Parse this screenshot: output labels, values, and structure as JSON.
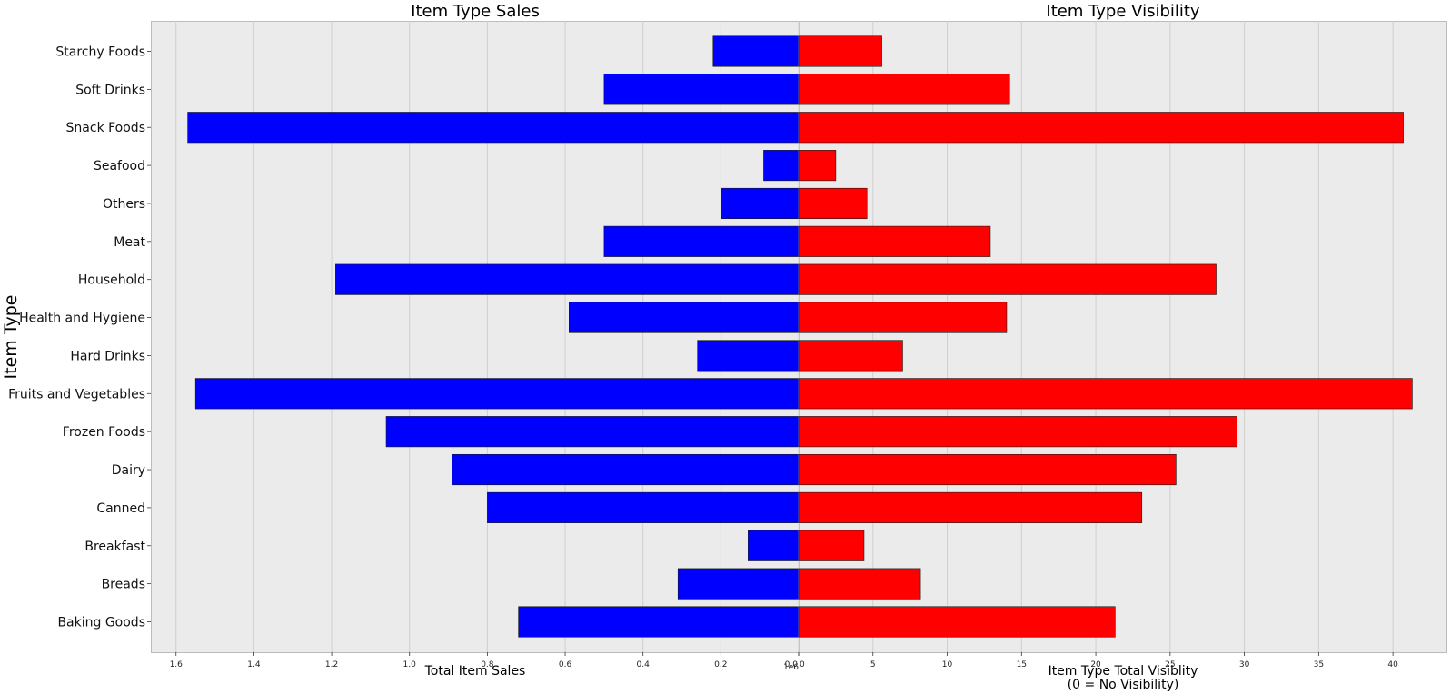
{
  "chart_data": {
    "type": "bar",
    "orientation": "horizontal",
    "layout": "back-to-back",
    "ylabel": "Item Type",
    "categories": [
      "Baking Goods",
      "Breads",
      "Breakfast",
      "Canned",
      "Dairy",
      "Frozen Foods",
      "Fruits and Vegetables",
      "Hard Drinks",
      "Health and Hygiene",
      "Household",
      "Meat",
      "Others",
      "Seafood",
      "Snack Foods",
      "Soft Drinks",
      "Starchy Foods"
    ],
    "panels": [
      {
        "title": "Item Type Sales",
        "xlabel": "Total Item Sales",
        "offset_label": "1e6",
        "color": "#0000ff",
        "inverted_x": true,
        "xlim": [
          0,
          1.6648
        ],
        "ticks": [
          0,
          0.2,
          0.4,
          0.6,
          0.8,
          1.0,
          1.2,
          1.4,
          1.6
        ],
        "tick_labels": [
          "0.0",
          "0.2",
          "0.4",
          "0.6",
          "0.8",
          "1.0",
          "1.2",
          "1.4",
          "1.6"
        ],
        "series": [
          {
            "name": "Total Item Sales",
            "values": [
              0.72,
              0.31,
              0.13,
              0.8,
              0.89,
              1.06,
              1.55,
              0.26,
              0.59,
              1.19,
              0.5,
              0.2,
              0.09,
              1.57,
              0.5,
              0.22
            ]
          }
        ]
      },
      {
        "title": "Item Type Visibility",
        "xlabel": "Item Type Total Visiblity",
        "xlabel_line2": "(0 = No Visibility)",
        "color": "#ff0000",
        "xlim": [
          0,
          43.6
        ],
        "ticks": [
          0,
          5,
          10,
          15,
          20,
          25,
          30,
          35,
          40
        ],
        "tick_labels": [
          "0",
          "5",
          "10",
          "15",
          "20",
          "25",
          "30",
          "35",
          "40"
        ],
        "series": [
          {
            "name": "Item Type Total Visiblity",
            "values": [
              21.3,
              8.2,
              4.4,
              23.1,
              25.4,
              29.5,
              41.3,
              7.0,
              14.0,
              28.1,
              12.9,
              4.6,
              2.5,
              40.7,
              14.2,
              5.6
            ]
          }
        ]
      }
    ]
  }
}
